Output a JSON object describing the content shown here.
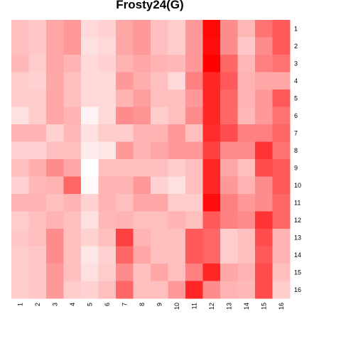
{
  "chart_data": {
    "type": "heatmap",
    "title": "Frosty24(G)",
    "xlabel": "",
    "ylabel": "",
    "x_categories": [
      "1",
      "2",
      "3",
      "4",
      "5",
      "6",
      "7",
      "8",
      "9",
      "10",
      "11",
      "12",
      "13",
      "14",
      "15",
      "16"
    ],
    "y_categories": [
      "1",
      "2",
      "3",
      "4",
      "5",
      "6",
      "7",
      "8",
      "9",
      "10",
      "11",
      "12",
      "13",
      "14",
      "15",
      "16"
    ],
    "value_range": [
      0,
      1
    ],
    "color_low": "#ffffff",
    "color_high": "#ff0000",
    "grid": false,
    "legend": "none",
    "values": [
      [
        0.25,
        0.22,
        0.35,
        0.4,
        0.15,
        0.18,
        0.35,
        0.4,
        0.25,
        0.2,
        0.4,
        0.97,
        0.45,
        0.28,
        0.55,
        0.65
      ],
      [
        0.25,
        0.22,
        0.35,
        0.4,
        0.12,
        0.15,
        0.35,
        0.4,
        0.25,
        0.2,
        0.4,
        0.95,
        0.45,
        0.22,
        0.45,
        0.65
      ],
      [
        0.28,
        0.2,
        0.35,
        0.3,
        0.15,
        0.18,
        0.3,
        0.35,
        0.3,
        0.28,
        0.4,
        1.0,
        0.6,
        0.28,
        0.5,
        0.55
      ],
      [
        0.2,
        0.18,
        0.35,
        0.25,
        0.15,
        0.15,
        0.4,
        0.32,
        0.25,
        0.15,
        0.5,
        0.85,
        0.65,
        0.3,
        0.35,
        0.35
      ],
      [
        0.2,
        0.2,
        0.35,
        0.25,
        0.15,
        0.15,
        0.3,
        0.38,
        0.25,
        0.25,
        0.4,
        0.85,
        0.6,
        0.3,
        0.4,
        0.65
      ],
      [
        0.12,
        0.2,
        0.35,
        0.3,
        0.05,
        0.15,
        0.45,
        0.42,
        0.2,
        0.25,
        0.45,
        0.85,
        0.6,
        0.28,
        0.4,
        0.55
      ],
      [
        0.3,
        0.3,
        0.18,
        0.28,
        0.12,
        0.2,
        0.2,
        0.3,
        0.3,
        0.4,
        0.25,
        0.82,
        0.7,
        0.5,
        0.5,
        0.6
      ],
      [
        0.18,
        0.18,
        0.25,
        0.25,
        0.08,
        0.1,
        0.4,
        0.3,
        0.35,
        0.4,
        0.4,
        0.75,
        0.45,
        0.45,
        0.8,
        0.55
      ],
      [
        0.25,
        0.32,
        0.45,
        0.35,
        0.0,
        0.25,
        0.25,
        0.25,
        0.25,
        0.2,
        0.25,
        0.85,
        0.35,
        0.25,
        0.7,
        0.65
      ],
      [
        0.18,
        0.28,
        0.3,
        0.6,
        0.02,
        0.3,
        0.3,
        0.4,
        0.18,
        0.12,
        0.25,
        0.85,
        0.4,
        0.3,
        0.45,
        0.65
      ],
      [
        0.3,
        0.3,
        0.25,
        0.3,
        0.18,
        0.3,
        0.25,
        0.35,
        0.35,
        0.2,
        0.2,
        0.95,
        0.5,
        0.4,
        0.45,
        0.6
      ],
      [
        0.2,
        0.25,
        0.3,
        0.25,
        0.12,
        0.28,
        0.3,
        0.25,
        0.25,
        0.3,
        0.25,
        0.65,
        0.5,
        0.45,
        0.8,
        0.6
      ],
      [
        0.22,
        0.25,
        0.45,
        0.25,
        0.18,
        0.25,
        0.75,
        0.3,
        0.25,
        0.25,
        0.65,
        0.6,
        0.2,
        0.25,
        0.7,
        0.3
      ],
      [
        0.2,
        0.22,
        0.45,
        0.25,
        0.1,
        0.18,
        0.6,
        0.35,
        0.25,
        0.25,
        0.65,
        0.6,
        0.2,
        0.25,
        0.65,
        0.3
      ],
      [
        0.2,
        0.22,
        0.4,
        0.25,
        0.12,
        0.2,
        0.45,
        0.25,
        0.35,
        0.25,
        0.5,
        0.85,
        0.35,
        0.3,
        0.7,
        0.25
      ],
      [
        0.2,
        0.22,
        0.4,
        0.2,
        0.18,
        0.25,
        0.6,
        0.25,
        0.25,
        0.4,
        0.85,
        0.45,
        0.3,
        0.28,
        0.7,
        0.2
      ]
    ]
  }
}
